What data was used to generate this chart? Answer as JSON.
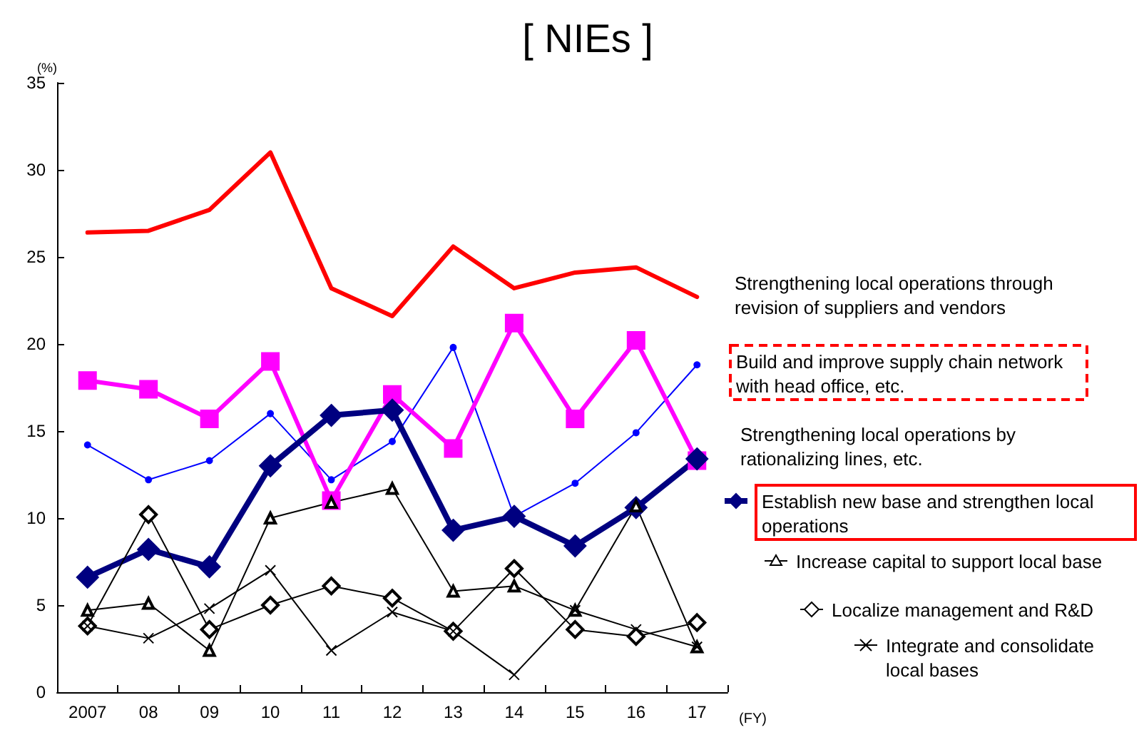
{
  "chart_data": {
    "type": "line",
    "title": "[ NIEs ]",
    "ylabel": "(%)",
    "xlabel": "(FY)",
    "categories": [
      "2007",
      "08",
      "09",
      "10",
      "11",
      "12",
      "13",
      "14",
      "15",
      "16",
      "17"
    ],
    "ylim": [
      0,
      35
    ],
    "yticks": [
      0,
      5,
      10,
      15,
      20,
      25,
      30,
      35
    ],
    "grid": false,
    "legend": "right",
    "series": [
      {
        "name": "Strengthening local operations through revision of suppliers and vendors",
        "color": "#ff0000",
        "marker": "none",
        "values": [
          26.4,
          26.5,
          27.7,
          31.0,
          23.2,
          21.6,
          25.6,
          23.2,
          24.1,
          24.4,
          22.7
        ]
      },
      {
        "name": "Build and improve supply chain network with head office, etc.",
        "color": "#0000ff",
        "marker": "circle",
        "values": [
          14.2,
          12.2,
          13.3,
          16.0,
          12.2,
          14.4,
          19.8,
          10.1,
          12.0,
          14.9,
          18.8
        ]
      },
      {
        "name": "Strengthening local operations by rationalizing lines, etc.",
        "color": "#ff00ff",
        "marker": "square",
        "values": [
          17.9,
          17.4,
          15.7,
          19.0,
          11.0,
          17.1,
          14.0,
          21.2,
          15.7,
          20.2,
          13.3
        ]
      },
      {
        "name": "Establish new base and strengthen local operations",
        "color": "#000080",
        "marker": "diamond",
        "values": [
          6.6,
          8.2,
          7.2,
          13.0,
          15.9,
          16.2,
          9.3,
          10.1,
          8.4,
          10.6,
          13.4
        ]
      },
      {
        "name": "Increase capital to support local base",
        "color": "#000000",
        "marker": "triangle",
        "values": [
          4.7,
          5.1,
          2.4,
          10.0,
          10.9,
          11.7,
          5.8,
          6.1,
          4.7,
          10.7,
          2.6
        ]
      },
      {
        "name": "Localize management and R&D",
        "color": "#000000",
        "marker": "diamond",
        "values": [
          3.8,
          10.2,
          3.6,
          5.0,
          6.1,
          5.4,
          3.5,
          7.1,
          3.6,
          3.2,
          4.0
        ]
      },
      {
        "name": "Integrate and consolidate local bases",
        "color": "#000000",
        "marker": "cross",
        "values": [
          3.8,
          3.1,
          4.8,
          7.0,
          2.4,
          4.6,
          3.5,
          1.0,
          4.7,
          3.6,
          2.6
        ]
      }
    ]
  }
}
